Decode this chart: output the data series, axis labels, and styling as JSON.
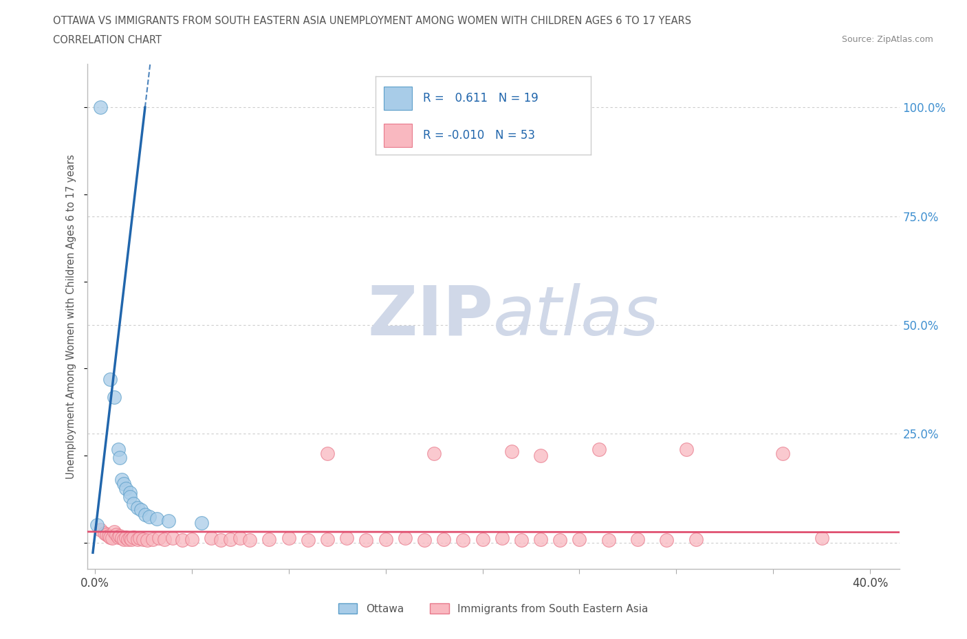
{
  "title_line1": "OTTAWA VS IMMIGRANTS FROM SOUTH EASTERN ASIA UNEMPLOYMENT AMONG WOMEN WITH CHILDREN AGES 6 TO 17 YEARS",
  "title_line2": "CORRELATION CHART",
  "source_text": "Source: ZipAtlas.com",
  "ylabel": "Unemployment Among Women with Children Ages 6 to 17 years",
  "background_color": "#ffffff",
  "ottawa_color": "#a8cce8",
  "ottawa_edge_color": "#5b9ec9",
  "immigrants_color": "#f9b8c0",
  "immigrants_edge_color": "#e8788a",
  "ottawa_line_color": "#2166ac",
  "immigrants_line_color": "#e05070",
  "grid_color": "#cccccc",
  "grid_linestyle": "dotted",
  "watermark_color": "#d0d8e8",
  "right_tick_color": "#4090d0",
  "ottawa_scatter_x": [
    0.003,
    0.008,
    0.01,
    0.012,
    0.013,
    0.014,
    0.015,
    0.016,
    0.018,
    0.018,
    0.02,
    0.022,
    0.024,
    0.026,
    0.028,
    0.032,
    0.038,
    0.055,
    0.001
  ],
  "ottawa_scatter_y": [
    1.0,
    0.375,
    0.335,
    0.215,
    0.195,
    0.145,
    0.135,
    0.125,
    0.115,
    0.105,
    0.09,
    0.08,
    0.075,
    0.065,
    0.06,
    0.055,
    0.05,
    0.045,
    0.04
  ],
  "immigrants_scatter_x": [
    0.003,
    0.005,
    0.006,
    0.007,
    0.008,
    0.009,
    0.01,
    0.011,
    0.012,
    0.013,
    0.014,
    0.015,
    0.016,
    0.017,
    0.018,
    0.019,
    0.02,
    0.022,
    0.023,
    0.025,
    0.027,
    0.03,
    0.033,
    0.036,
    0.04,
    0.045,
    0.05,
    0.06,
    0.065,
    0.07,
    0.075,
    0.08,
    0.09,
    0.1,
    0.11,
    0.12,
    0.13,
    0.14,
    0.15,
    0.16,
    0.17,
    0.18,
    0.19,
    0.2,
    0.21,
    0.22,
    0.23,
    0.24,
    0.25,
    0.265,
    0.28,
    0.295,
    0.31
  ],
  "immigrants_scatter_y": [
    0.03,
    0.022,
    0.018,
    0.015,
    0.012,
    0.01,
    0.025,
    0.018,
    0.012,
    0.015,
    0.01,
    0.008,
    0.012,
    0.008,
    0.01,
    0.008,
    0.012,
    0.008,
    0.01,
    0.008,
    0.006,
    0.008,
    0.01,
    0.008,
    0.01,
    0.006,
    0.008,
    0.01,
    0.006,
    0.008,
    0.01,
    0.006,
    0.008,
    0.01,
    0.006,
    0.008,
    0.01,
    0.006,
    0.008,
    0.01,
    0.006,
    0.008,
    0.006,
    0.008,
    0.01,
    0.006,
    0.008,
    0.006,
    0.008,
    0.006,
    0.008,
    0.006,
    0.008
  ],
  "immigrants_outlier_x": [
    0.12,
    0.175,
    0.215,
    0.23,
    0.26,
    0.305,
    0.355,
    0.375
  ],
  "immigrants_outlier_y": [
    0.205,
    0.205,
    0.21,
    0.2,
    0.215,
    0.215,
    0.205,
    0.01
  ],
  "xlim_min": -0.004,
  "xlim_max": 0.415,
  "ylim_min": -0.06,
  "ylim_max": 1.1,
  "xtick_pos": [
    0.0,
    0.05,
    0.1,
    0.15,
    0.2,
    0.25,
    0.3,
    0.35,
    0.4
  ],
  "xtick_labels": [
    "0.0%",
    "",
    "",
    "",
    "",
    "",
    "",
    "",
    "40.0%"
  ],
  "ytick_pos": [
    0.0,
    0.25,
    0.5,
    0.75,
    1.0
  ],
  "ytick_labels": [
    "",
    "25.0%",
    "50.0%",
    "75.0%",
    "100.0%"
  ]
}
